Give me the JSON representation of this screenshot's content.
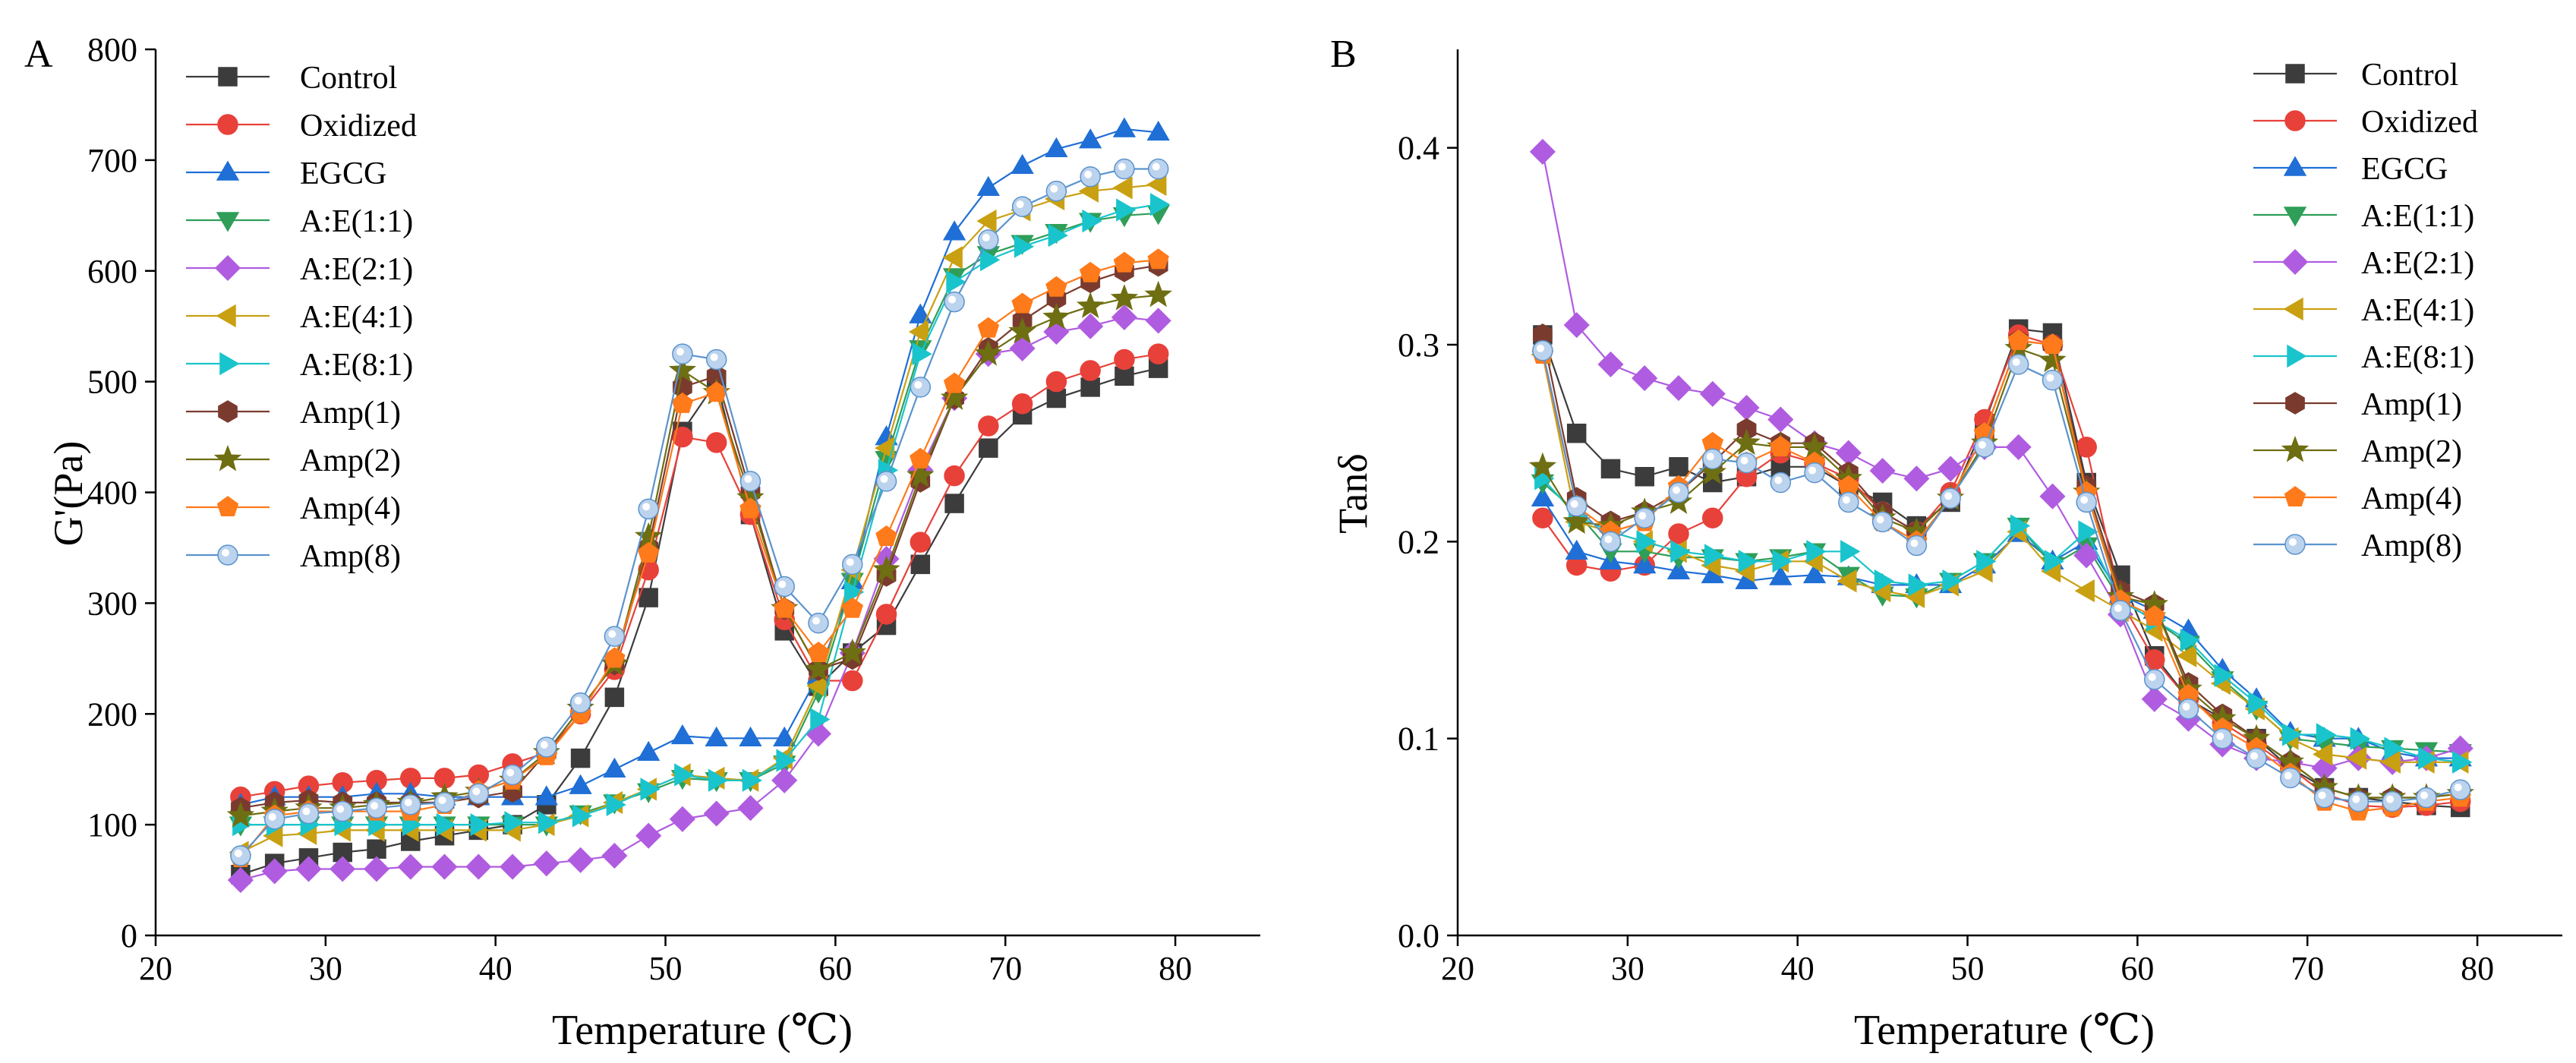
{
  "chart_data": [
    {
      "type": "line",
      "panel_label": "A",
      "xlabel": "Temperature (℃)",
      "ylabel": "G'(Pa)",
      "xlim": [
        20,
        85
      ],
      "ylim": [
        0,
        800
      ],
      "xticks": [
        20,
        30,
        40,
        50,
        60,
        70,
        80
      ],
      "yticks": [
        0,
        100,
        200,
        300,
        400,
        500,
        600,
        700,
        800
      ],
      "legend_position": "top-left",
      "x": [
        25,
        27,
        29,
        31,
        33,
        35,
        37,
        39,
        41,
        43,
        45,
        47,
        49,
        51,
        53,
        55,
        57,
        59,
        61,
        63,
        65,
        67,
        69,
        71,
        73,
        75,
        77,
        79
      ],
      "series": [
        {
          "name": "Control",
          "color": "#3c3c3c",
          "marker": "square",
          "values": [
            55,
            65,
            70,
            75,
            78,
            85,
            90,
            95,
            100,
            118,
            160,
            215,
            305,
            455,
            500,
            380,
            275,
            225,
            255,
            280,
            335,
            390,
            440,
            470,
            485,
            495,
            505,
            512
          ]
        },
        {
          "name": "Oxidized",
          "color": "#e8413a",
          "marker": "circle",
          "values": [
            125,
            130,
            135,
            138,
            140,
            142,
            142,
            145,
            155,
            165,
            200,
            240,
            330,
            450,
            445,
            380,
            285,
            230,
            230,
            290,
            355,
            415,
            460,
            480,
            500,
            510,
            520,
            525
          ]
        },
        {
          "name": "EGCG",
          "color": "#1f6fd6",
          "marker": "triangle-up",
          "values": [
            118,
            125,
            125,
            125,
            128,
            128,
            125,
            125,
            125,
            125,
            135,
            150,
            165,
            180,
            178,
            178,
            178,
            235,
            320,
            450,
            560,
            635,
            675,
            695,
            710,
            718,
            728,
            725
          ]
        },
        {
          "name": "A:E(1:1)",
          "color": "#2e9e58",
          "marker": "triangle-down",
          "values": [
            100,
            100,
            100,
            100,
            100,
            100,
            100,
            100,
            100,
            100,
            110,
            120,
            130,
            142,
            140,
            140,
            155,
            220,
            320,
            430,
            530,
            595,
            615,
            625,
            635,
            645,
            650,
            652
          ]
        },
        {
          "name": "A:E(2:1)",
          "color": "#b05ce0",
          "marker": "diamond",
          "values": [
            50,
            58,
            60,
            60,
            60,
            62,
            62,
            62,
            62,
            65,
            68,
            72,
            90,
            105,
            110,
            115,
            140,
            182,
            255,
            340,
            420,
            485,
            525,
            530,
            545,
            550,
            558,
            555
          ]
        },
        {
          "name": "A:E(4:1)",
          "color": "#c9a012",
          "marker": "triangle-left",
          "values": [
            75,
            90,
            92,
            95,
            95,
            95,
            95,
            95,
            95,
            100,
            108,
            120,
            132,
            145,
            142,
            140,
            160,
            225,
            330,
            440,
            545,
            612,
            645,
            655,
            665,
            672,
            675,
            678
          ]
        },
        {
          "name": "A:E(8:1)",
          "color": "#1ac4cc",
          "marker": "triangle-right",
          "values": [
            100,
            100,
            100,
            100,
            100,
            100,
            100,
            100,
            102,
            102,
            108,
            118,
            132,
            145,
            140,
            140,
            158,
            195,
            310,
            420,
            525,
            590,
            610,
            622,
            632,
            645,
            655,
            660
          ]
        },
        {
          "name": "Amp(1)",
          "color": "#7a3b2e",
          "marker": "hexagon",
          "values": [
            115,
            120,
            122,
            120,
            120,
            120,
            120,
            125,
            130,
            165,
            205,
            245,
            350,
            495,
            505,
            400,
            295,
            240,
            250,
            325,
            410,
            485,
            530,
            555,
            575,
            590,
            600,
            605
          ]
        },
        {
          "name": "Amp(2)",
          "color": "#6e6e12",
          "marker": "star",
          "values": [
            108,
            112,
            115,
            115,
            118,
            120,
            125,
            130,
            140,
            165,
            205,
            245,
            360,
            510,
            490,
            395,
            295,
            240,
            255,
            330,
            415,
            485,
            525,
            545,
            558,
            568,
            575,
            578
          ]
        },
        {
          "name": "Amp(4)",
          "color": "#ff7a1a",
          "marker": "pentagon",
          "values": [
            70,
            108,
            112,
            112,
            112,
            112,
            118,
            130,
            140,
            162,
            200,
            250,
            345,
            480,
            490,
            385,
            295,
            255,
            295,
            360,
            430,
            498,
            548,
            570,
            585,
            598,
            607,
            610
          ]
        },
        {
          "name": "Amp(8)",
          "color": "#5b93cc",
          "marker": "circle-light",
          "values": [
            72,
            105,
            110,
            112,
            115,
            118,
            120,
            128,
            145,
            170,
            210,
            270,
            385,
            525,
            520,
            410,
            315,
            282,
            335,
            410,
            495,
            572,
            628,
            658,
            672,
            685,
            692,
            692
          ]
        }
      ]
    },
    {
      "type": "line",
      "panel_label": "B",
      "xlabel": "Temperature (℃)",
      "ylabel": "Tanδ",
      "xlim": [
        20,
        85
      ],
      "ylim": [
        0,
        0.45
      ],
      "xticks": [
        20,
        30,
        40,
        50,
        60,
        70,
        80
      ],
      "yticks": [
        0.0,
        0.1,
        0.2,
        0.3,
        0.4
      ],
      "ytick_labels": [
        "0.0",
        "0.1",
        "0.2",
        "0.3",
        "0.4"
      ],
      "legend_position": "top-right",
      "x": [
        25,
        27,
        29,
        31,
        33,
        35,
        37,
        39,
        41,
        43,
        45,
        47,
        49,
        51,
        53,
        55,
        57,
        59,
        61,
        63,
        65,
        67,
        69,
        71,
        73,
        75,
        77,
        79
      ],
      "series": [
        {
          "name": "Control",
          "color": "#3c3c3c",
          "marker": "square",
          "values": [
            0.305,
            0.255,
            0.237,
            0.233,
            0.238,
            0.23,
            0.233,
            0.238,
            0.238,
            0.228,
            0.22,
            0.208,
            0.22,
            0.26,
            0.308,
            0.306,
            0.23,
            0.183,
            0.142,
            0.12,
            0.11,
            0.1,
            0.085,
            0.075,
            0.07,
            0.068,
            0.066,
            0.065
          ]
        },
        {
          "name": "Oxidized",
          "color": "#e8413a",
          "marker": "circle",
          "values": [
            0.212,
            0.188,
            0.185,
            0.188,
            0.204,
            0.212,
            0.233,
            0.245,
            0.24,
            0.232,
            0.215,
            0.205,
            0.225,
            0.262,
            0.305,
            0.3,
            0.248,
            0.17,
            0.14,
            0.12,
            0.108,
            0.097,
            0.085,
            0.072,
            0.066,
            0.065,
            0.066,
            0.068
          ]
        },
        {
          "name": "EGCG",
          "color": "#1f6fd6",
          "marker": "triangle-up",
          "values": [
            0.222,
            0.195,
            0.19,
            0.188,
            0.185,
            0.183,
            0.18,
            0.182,
            0.183,
            0.182,
            0.178,
            0.178,
            0.178,
            0.188,
            0.204,
            0.19,
            0.2,
            0.173,
            0.165,
            0.155,
            0.135,
            0.12,
            0.103,
            0.1,
            0.1,
            0.093,
            0.09,
            0.09
          ]
        },
        {
          "name": "A:E(1:1)",
          "color": "#2e9e58",
          "marker": "triangle-down",
          "values": [
            0.23,
            0.215,
            0.195,
            0.195,
            0.192,
            0.192,
            0.19,
            0.192,
            0.195,
            0.183,
            0.173,
            0.172,
            0.18,
            0.19,
            0.208,
            0.188,
            0.198,
            0.17,
            0.16,
            0.148,
            0.13,
            0.115,
            0.1,
            0.098,
            0.096,
            0.095,
            0.094,
            0.093
          ]
        },
        {
          "name": "A:E(2:1)",
          "color": "#b05ce0",
          "marker": "diamond",
          "values": [
            0.398,
            0.31,
            0.29,
            0.283,
            0.278,
            0.275,
            0.268,
            0.262,
            0.25,
            0.245,
            0.236,
            0.232,
            0.237,
            0.248,
            0.248,
            0.223,
            0.193,
            0.163,
            0.12,
            0.11,
            0.097,
            0.09,
            0.088,
            0.085,
            0.09,
            0.088,
            0.09,
            0.095
          ]
        },
        {
          "name": "A:E(4:1)",
          "color": "#c9a012",
          "marker": "triangle-left",
          "values": [
            0.295,
            0.21,
            0.205,
            0.2,
            0.195,
            0.188,
            0.185,
            0.19,
            0.19,
            0.18,
            0.175,
            0.172,
            0.178,
            0.185,
            0.205,
            0.185,
            0.175,
            0.165,
            0.155,
            0.142,
            0.128,
            0.115,
            0.1,
            0.092,
            0.09,
            0.088,
            0.088,
            0.088
          ]
        },
        {
          "name": "A:E(8:1)",
          "color": "#1ac4cc",
          "marker": "triangle-right",
          "values": [
            0.232,
            0.213,
            0.205,
            0.2,
            0.195,
            0.193,
            0.19,
            0.19,
            0.195,
            0.195,
            0.18,
            0.178,
            0.18,
            0.19,
            0.208,
            0.19,
            0.205,
            0.17,
            0.16,
            0.15,
            0.132,
            0.118,
            0.102,
            0.102,
            0.1,
            0.095,
            0.09,
            0.088
          ]
        },
        {
          "name": "Amp(1)",
          "color": "#7a3b2e",
          "marker": "hexagon",
          "values": [
            0.305,
            0.222,
            0.21,
            0.215,
            0.225,
            0.24,
            0.257,
            0.25,
            0.25,
            0.235,
            0.215,
            0.205,
            0.222,
            0.255,
            0.302,
            0.3,
            0.228,
            0.175,
            0.168,
            0.128,
            0.112,
            0.1,
            0.088,
            0.075,
            0.07,
            0.07,
            0.07,
            0.072
          ]
        },
        {
          "name": "Amp(2)",
          "color": "#6e6e12",
          "marker": "star",
          "values": [
            0.238,
            0.21,
            0.208,
            0.215,
            0.22,
            0.235,
            0.25,
            0.248,
            0.248,
            0.232,
            0.212,
            0.205,
            0.222,
            0.25,
            0.298,
            0.292,
            0.225,
            0.172,
            0.168,
            0.125,
            0.11,
            0.1,
            0.088,
            0.075,
            0.07,
            0.07,
            0.07,
            0.072
          ]
        },
        {
          "name": "Amp(4)",
          "color": "#ff7a1a",
          "marker": "pentagon",
          "values": [
            0.295,
            0.218,
            0.205,
            0.21,
            0.228,
            0.25,
            0.24,
            0.248,
            0.24,
            0.228,
            0.21,
            0.2,
            0.222,
            0.255,
            0.302,
            0.3,
            0.225,
            0.17,
            0.162,
            0.122,
            0.105,
            0.095,
            0.082,
            0.068,
            0.063,
            0.065,
            0.068,
            0.07
          ]
        },
        {
          "name": "Amp(8)",
          "color": "#5b93cc",
          "marker": "circle-light",
          "values": [
            0.297,
            0.218,
            0.2,
            0.212,
            0.225,
            0.242,
            0.24,
            0.23,
            0.235,
            0.22,
            0.21,
            0.198,
            0.222,
            0.248,
            0.29,
            0.282,
            0.22,
            0.165,
            0.13,
            0.115,
            0.1,
            0.09,
            0.08,
            0.07,
            0.068,
            0.068,
            0.07,
            0.074
          ]
        }
      ]
    }
  ]
}
